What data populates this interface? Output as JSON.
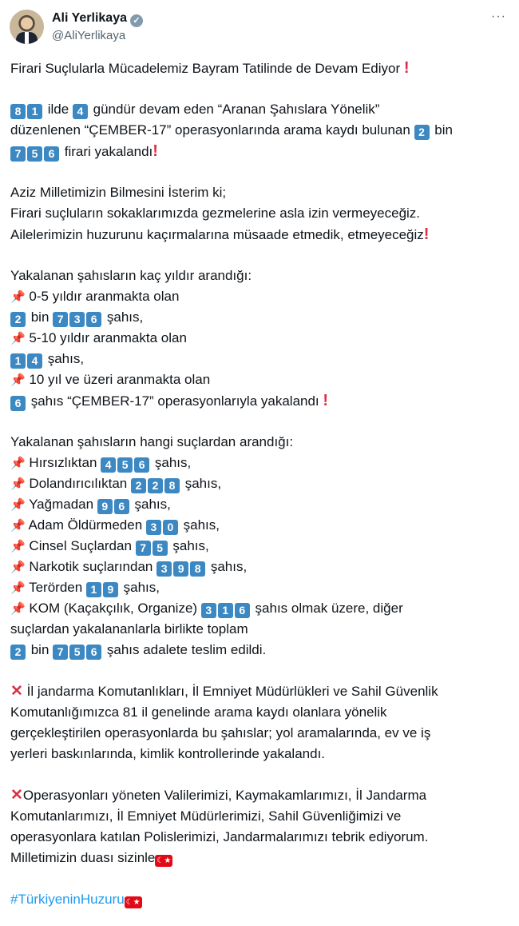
{
  "author": {
    "name": "Ali Yerlikaya",
    "handle": "@AliYerlikaya",
    "verified": true,
    "more_icon": "ellipsis-icon"
  },
  "colors": {
    "keycap": "#3b88c3",
    "accent_red": "#dd2e44",
    "link": "#1d9bf0"
  },
  "paragraphs": [
    [
      [
        {
          "t": "Firari Suçlularla Mücadelemiz Bayram Tatilinde de Devam Ediyor "
        },
        {
          "e": "exclamation"
        }
      ]
    ],
    [
      [
        {
          "k": "81"
        },
        {
          "t": " ilde "
        },
        {
          "k": "4"
        },
        {
          "t": " gündür devam eden “Aranan Şahıslara Yönelik”"
        }
      ],
      [
        {
          "t": "düzenlenen “ÇEMBER-17” operasyonlarında arama kaydı bulunan "
        },
        {
          "k": "2"
        },
        {
          "t": " bin"
        }
      ],
      [
        {
          "k": "756"
        },
        {
          "t": " firari yakalandı"
        },
        {
          "e": "exclamation"
        }
      ]
    ],
    [
      [
        {
          "t": "Aziz Milletimizin Bilmesini İsterim ki;"
        }
      ],
      [
        {
          "t": "Firari suçluların sokaklarımızda gezmelerine asla izin vermeyeceğiz."
        }
      ],
      [
        {
          "t": "Ailelerimizin huzurunu kaçırmalarına müsaade etmedik, etmeyeceğiz"
        },
        {
          "e": "exclamation"
        }
      ]
    ],
    [
      [
        {
          "t": "Yakalanan şahısların kaç yıldır arandığı:"
        }
      ],
      [
        {
          "e": "pin"
        },
        {
          "t": " 0-5 yıldır aranmakta olan"
        }
      ],
      [
        {
          "k": "2"
        },
        {
          "t": " bin "
        },
        {
          "k": "736"
        },
        {
          "t": " şahıs,"
        }
      ],
      [
        {
          "e": "pin"
        },
        {
          "t": " 5-10 yıldır aranmakta olan"
        }
      ],
      [
        {
          "k": "14"
        },
        {
          "t": " şahıs,"
        }
      ],
      [
        {
          "e": "pin"
        },
        {
          "t": " 10 yıl ve üzeri aranmakta olan"
        }
      ],
      [
        {
          "k": "6"
        },
        {
          "t": " şahıs “ÇEMBER-17” operasyonlarıyla yakalandı "
        },
        {
          "e": "exclamation"
        }
      ]
    ],
    [
      [
        {
          "t": "Yakalanan şahısların hangi suçlardan arandığı:"
        }
      ],
      [
        {
          "e": "pin"
        },
        {
          "t": " Hırsızlıktan "
        },
        {
          "k": "456"
        },
        {
          "t": " şahıs,"
        }
      ],
      [
        {
          "e": "pin"
        },
        {
          "t": " Dolandırıcılıktan "
        },
        {
          "k": "228"
        },
        {
          "t": " şahıs,"
        }
      ],
      [
        {
          "e": "pin"
        },
        {
          "t": " Yağmadan "
        },
        {
          "k": "96"
        },
        {
          "t": " şahıs,"
        }
      ],
      [
        {
          "e": "pin"
        },
        {
          "t": " Adam Öldürmeden "
        },
        {
          "k": "30"
        },
        {
          "t": " şahıs,"
        }
      ],
      [
        {
          "e": "pin"
        },
        {
          "t": " Cinsel Suçlardan "
        },
        {
          "k": "75"
        },
        {
          "t": " şahıs,"
        }
      ],
      [
        {
          "e": "pin"
        },
        {
          "t": " Narkotik suçlarından "
        },
        {
          "k": "398"
        },
        {
          "t": " şahıs,"
        }
      ],
      [
        {
          "e": "pin"
        },
        {
          "t": " Terörden "
        },
        {
          "k": "19"
        },
        {
          "t": " şahıs,"
        }
      ],
      [
        {
          "e": "pin"
        },
        {
          "t": " KOM (Kaçakçılık, Organize) "
        },
        {
          "k": "316"
        },
        {
          "t": " şahıs olmak üzere, diğer"
        }
      ],
      [
        {
          "t": "suçlardan yakalananlarla birlikte toplam"
        }
      ],
      [
        {
          "k": "2"
        },
        {
          "t": " bin "
        },
        {
          "k": "756"
        },
        {
          "t": " şahıs adalete teslim edildi."
        }
      ]
    ],
    [
      [
        {
          "e": "cross"
        },
        {
          "t": " İl jandarma Komutanlıkları, İl Emniyet Müdürlükleri ve Sahil Güvenlik"
        }
      ],
      [
        {
          "t": "Komutanlığımızca 81 il genelinde arama kaydı olanlara yönelik"
        }
      ],
      [
        {
          "t": "gerçekleştirilen operasyonlarda bu şahıslar; yol aramalarında, ev ve iş"
        }
      ],
      [
        {
          "t": "yerleri baskınlarında, kimlik kontrollerinde yakalandı."
        }
      ]
    ],
    [
      [
        {
          "e": "cross"
        },
        {
          "t": "Operasyonları yöneten Valilerimizi, Kaymakamlarımızı, İl Jandarma"
        }
      ],
      [
        {
          "t": "Komutanlarımızı, İl Emniyet Müdürlerimizi, Sahil Güvenliğimizi ve"
        }
      ],
      [
        {
          "t": "operasyonlara katılan Polislerimizi, Jandarmalarımızı tebrik ediyorum."
        }
      ],
      [
        {
          "t": "Milletimizin duası sizinle"
        },
        {
          "e": "flag-turkey"
        }
      ]
    ],
    [
      [
        {
          "h": "#TürkiyeninHuzuru"
        },
        {
          "e": "flag-turkey"
        }
      ]
    ]
  ]
}
